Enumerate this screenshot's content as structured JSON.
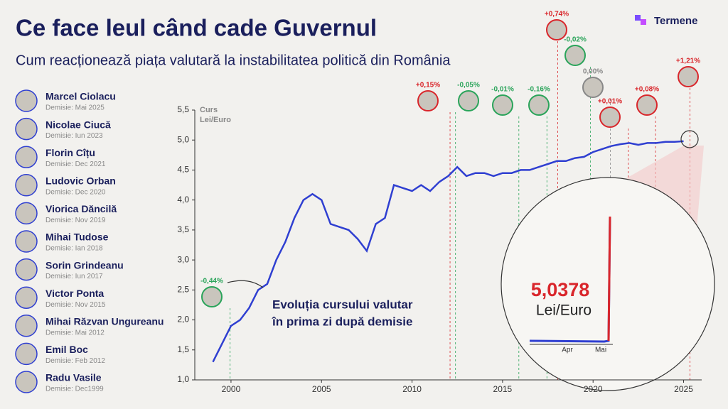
{
  "brand": "Termene",
  "chart_data": {
    "type": "line",
    "title": "Ce face leul când cade Guvernul",
    "subtitle": "Cum reacționează piața valutară la instabilitatea politică din România",
    "ylabel_lines": [
      "Curs",
      "Lei/Euro"
    ],
    "annotation_lines": [
      "Evoluția cursului valutar",
      "în prima zi după demisie"
    ],
    "x": [
      1999,
      1999.5,
      2000,
      2000.5,
      2001,
      2001.5,
      2002,
      2002.5,
      2003,
      2003.5,
      2004,
      2004.5,
      2005,
      2005.5,
      2006,
      2006.5,
      2007,
      2007.5,
      2008,
      2008.5,
      2009,
      2009.5,
      2010,
      2010.5,
      2011,
      2011.5,
      2012,
      2012.5,
      2013,
      2013.5,
      2014,
      2014.5,
      2015,
      2015.5,
      2016,
      2016.5,
      2017,
      2017.5,
      2018,
      2018.5,
      2019,
      2019.5,
      2020,
      2020.5,
      2021,
      2021.5,
      2022,
      2022.5,
      2023,
      2023.5,
      2024,
      2024.5,
      2025
    ],
    "series": [
      {
        "name": "Curs Lei/Euro",
        "color": "#2f3fd1",
        "values": [
          1.3,
          1.6,
          1.9,
          2.0,
          2.2,
          2.5,
          2.6,
          3.0,
          3.3,
          3.7,
          4.0,
          4.1,
          4.0,
          3.6,
          3.55,
          3.5,
          3.35,
          3.15,
          3.6,
          3.7,
          4.25,
          4.2,
          4.15,
          4.25,
          4.15,
          4.3,
          4.4,
          4.55,
          4.4,
          4.45,
          4.45,
          4.4,
          4.45,
          4.45,
          4.5,
          4.5,
          4.55,
          4.6,
          4.65,
          4.65,
          4.7,
          4.72,
          4.8,
          4.85,
          4.9,
          4.93,
          4.95,
          4.92,
          4.95,
          4.95,
          4.97,
          4.97,
          4.98
        ]
      }
    ],
    "xlim": [
      1998,
      2026
    ],
    "xticks": [
      2000,
      2005,
      2010,
      2015,
      2020,
      2025
    ],
    "ylim": [
      1,
      5.5
    ],
    "yticks": [
      {
        "value": 1,
        "label": "1,0"
      },
      {
        "value": 1.5,
        "label": "1,5"
      },
      {
        "value": 2,
        "label": "2,0"
      },
      {
        "value": 2.5,
        "label": "2,5"
      },
      {
        "value": 3,
        "label": "3,0"
      },
      {
        "value": 3.5,
        "label": "3,5"
      },
      {
        "value": 4,
        "label": "4,0"
      },
      {
        "value": 4.5,
        "label": "4,5"
      },
      {
        "value": 5,
        "label": "5,0"
      },
      {
        "value": 5.5,
        "label": "5,5"
      }
    ],
    "events": [
      {
        "x": 1999.95,
        "change": -0.44,
        "change_label": "-0,44%"
      },
      {
        "x": 2012.1,
        "change": 0.15,
        "change_label": "+0,15%"
      },
      {
        "x": 2012.4,
        "change": -0.05,
        "change_label": "-0,05%"
      },
      {
        "x": 2015.9,
        "change": -0.01,
        "change_label": "-0,01%"
      },
      {
        "x": 2017.45,
        "change": -0.16,
        "change_label": "-0,16%"
      },
      {
        "x": 2018.05,
        "change": 0.74,
        "change_label": "+0,74%"
      },
      {
        "x": 2019.85,
        "change": -0.02,
        "change_label": "-0,02%"
      },
      {
        "x": 2020.95,
        "change": 0,
        "change_label": "0,00%"
      },
      {
        "x": 2021.95,
        "change": 0.01,
        "change_label": "+0,01%"
      },
      {
        "x": 2023.45,
        "change": 0.08,
        "change_label": "+0,08%"
      },
      {
        "x": 2025.35,
        "change": 1.21,
        "change_label": "+1,21%"
      }
    ],
    "inset": {
      "value": 5.0378,
      "value_label": "5,0378",
      "unit": "Lei/Euro",
      "ticks": [
        "Apr",
        "Mai"
      ]
    }
  },
  "people": [
    {
      "name": "Marcel Ciolacu",
      "resigned": "Demisie: Mai 2025"
    },
    {
      "name": "Nicolae Ciucă",
      "resigned": "Demisie: Iun 2023"
    },
    {
      "name": "Florin Cîțu",
      "resigned": "Demisie: Dec 2021"
    },
    {
      "name": "Ludovic Orban",
      "resigned": "Demisie: Dec 2020"
    },
    {
      "name": "Viorica Dăncilă",
      "resigned": "Demisie: Nov 2019"
    },
    {
      "name": "Mihai Tudose",
      "resigned": "Demisie: Ian 2018"
    },
    {
      "name": "Sorin Grindeanu",
      "resigned": "Demisie: Iun 2017"
    },
    {
      "name": "Victor Ponta",
      "resigned": "Demisie: Nov 2015"
    },
    {
      "name": "Mihai Răzvan Ungureanu",
      "resigned": "Demisie: Mai 2012"
    },
    {
      "name": "Emil Boc",
      "resigned": "Demisie: Feb 2012"
    },
    {
      "name": "Radu Vasile",
      "resigned": "Demisie: Dec1999"
    }
  ]
}
